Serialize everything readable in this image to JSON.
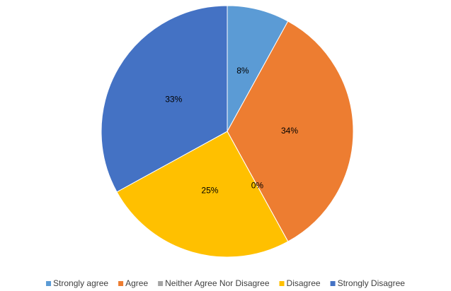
{
  "chart_data": {
    "type": "pie",
    "categories": [
      "Strongly agree",
      "Agree",
      "Neither Agree Nor Disagree",
      "Disagree",
      "Strongly Disagree"
    ],
    "values": [
      8,
      34,
      0,
      25,
      33
    ],
    "value_labels": [
      "8%",
      "34%",
      "0%",
      "25%",
      "33%"
    ],
    "colors": [
      "#5b9bd5",
      "#ed7d31",
      "#a5a5a5",
      "#ffc000",
      "#4472c4"
    ],
    "legend": "bottom"
  }
}
